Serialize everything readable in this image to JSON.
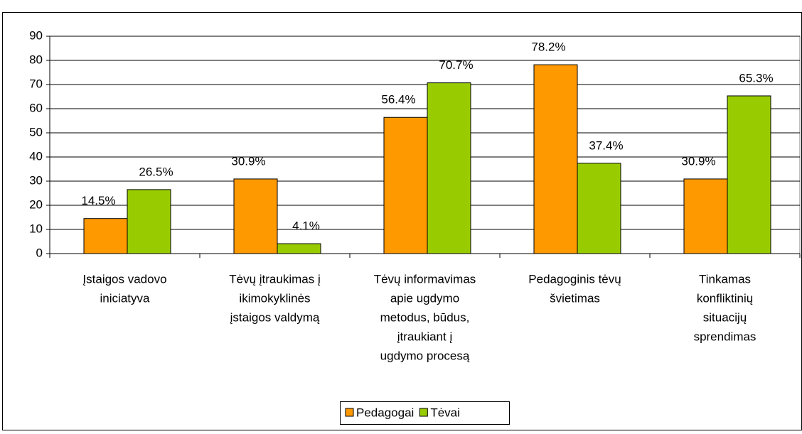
{
  "chart_data": {
    "type": "bar",
    "categories": [
      [
        "Įstaigos vadovo",
        "iniciatyva"
      ],
      [
        "Tėvų įtraukimas į",
        "ikimokyklinės",
        "įstaigos valdymą"
      ],
      [
        "Tėvų informavimas",
        "apie ugdymo",
        "metodus, būdus,",
        "įtraukiant į",
        "ugdymo procesą"
      ],
      [
        "Pedagoginis tėvų",
        "švietimas"
      ],
      [
        "Tinkamas",
        "konfliktinių",
        "situacijų",
        "sprendimas"
      ]
    ],
    "series": [
      {
        "name": "Pedagogai",
        "color": "#ff9900",
        "values": [
          14.5,
          30.9,
          56.4,
          78.2,
          30.9
        ],
        "value_labels": [
          "14.5%",
          "30.9%",
          "56.4%",
          "78.2%",
          "30.9%"
        ]
      },
      {
        "name": "Tėvai",
        "color": "#99cc00",
        "values": [
          26.5,
          4.1,
          70.7,
          37.4,
          65.3
        ],
        "value_labels": [
          "26.5%",
          "4.1%",
          "70.7%",
          "37.4%",
          "65.3%"
        ]
      }
    ],
    "ylim": [
      0,
      90
    ],
    "yticks": [
      0,
      10,
      20,
      30,
      40,
      50,
      60,
      70,
      80,
      90
    ],
    "grid": true,
    "legend": "bottom"
  }
}
